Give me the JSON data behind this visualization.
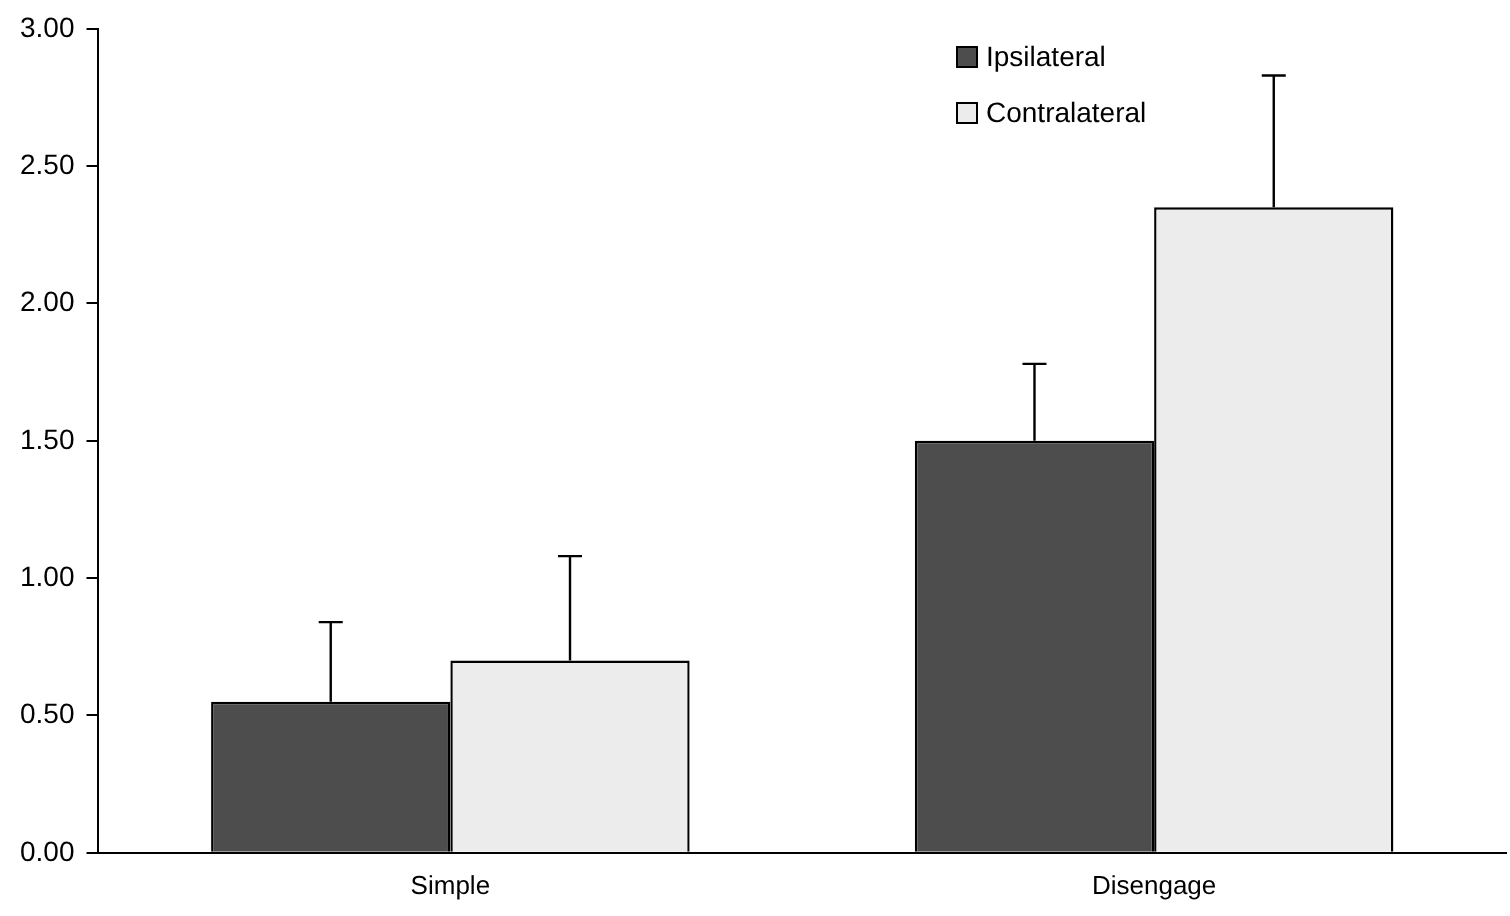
{
  "chart_data": {
    "type": "bar",
    "categories": [
      "Simple",
      "Disengage"
    ],
    "series": [
      {
        "name": "Ipsilateral",
        "color": "#4d4d4d",
        "values": [
          0.55,
          1.5
        ],
        "errors": [
          [
            0.55,
            0.84
          ],
          [
            1.5,
            1.78
          ]
        ]
      },
      {
        "name": "Contralateral",
        "color": "#ececec",
        "values": [
          0.7,
          2.35
        ],
        "errors": [
          [
            0.7,
            1.08
          ],
          [
            2.35,
            2.83
          ]
        ]
      }
    ],
    "ylim": [
      0,
      3
    ],
    "yticks": [
      {
        "value": 0,
        "label": "0.00"
      },
      {
        "value": 0.5,
        "label": "0.50"
      },
      {
        "value": 1,
        "label": "1.00"
      },
      {
        "value": 1.5,
        "label": "1.50"
      },
      {
        "value": 2,
        "label": "2.00"
      },
      {
        "value": 2.5,
        "label": "2.50"
      },
      {
        "value": 3,
        "label": "3.00"
      }
    ],
    "grid": false,
    "legend": "top right"
  }
}
